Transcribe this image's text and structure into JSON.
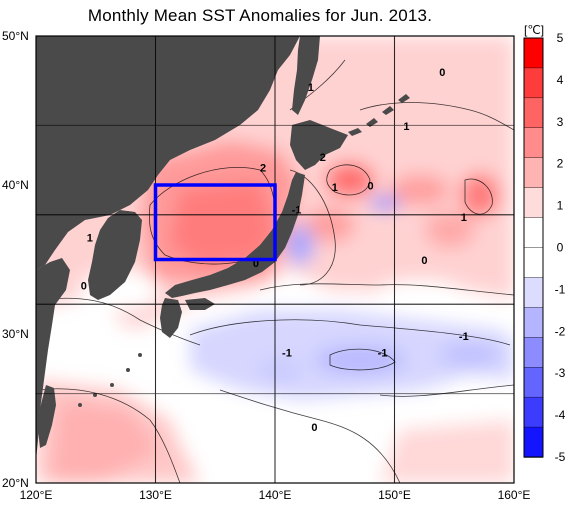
{
  "title": "Monthly Mean SST Anomalies for Jun. 2013.",
  "map": {
    "lat_range": [
      20,
      50
    ],
    "lon_range": [
      120,
      160
    ],
    "lat_ticks": [
      "50°N",
      "40°N",
      "30°N",
      "20°N"
    ],
    "lon_ticks": [
      "120°E",
      "130°E",
      "140°E",
      "150°E",
      "160°E"
    ],
    "grid": true,
    "land_color": "#4a4a4a",
    "ocean_color": "#ffffff"
  },
  "highlight_box": {
    "lon_range": [
      130,
      140
    ],
    "lat_range": [
      35,
      40
    ],
    "color": "#0000ff"
  },
  "contour_labels": [
    {
      "text": "1",
      "lon": 143.0,
      "lat": 46.3
    },
    {
      "text": "0",
      "lon": 154.0,
      "lat": 47.3
    },
    {
      "text": "1",
      "lon": 151.0,
      "lat": 43.7
    },
    {
      "text": "2",
      "lon": 144.0,
      "lat": 41.6
    },
    {
      "text": "2",
      "lon": 139.0,
      "lat": 40.9
    },
    {
      "text": "1",
      "lon": 145.0,
      "lat": 39.6
    },
    {
      "text": "0",
      "lon": 148.0,
      "lat": 39.7
    },
    {
      "text": "-1",
      "lon": 141.8,
      "lat": 38.1
    },
    {
      "text": "1",
      "lon": 155.8,
      "lat": 37.6
    },
    {
      "text": "1",
      "lon": 124.5,
      "lat": 36.2
    },
    {
      "text": "0",
      "lon": 138.4,
      "lat": 34.5
    },
    {
      "text": "0",
      "lon": 152.5,
      "lat": 34.7
    },
    {
      "text": "0",
      "lon": 124.0,
      "lat": 33.0
    },
    {
      "text": "-1",
      "lon": 155.8,
      "lat": 29.6
    },
    {
      "text": "-1",
      "lon": 141.0,
      "lat": 28.5
    },
    {
      "text": "-1",
      "lon": 149.0,
      "lat": 28.5
    },
    {
      "text": "0",
      "lon": 143.3,
      "lat": 23.5
    }
  ],
  "colorbar": {
    "unit": "[℃]",
    "min": -5,
    "max": 5,
    "labels": [
      "5",
      "4",
      "3",
      "2",
      "1",
      "0",
      "-1",
      "-2",
      "-3",
      "-4",
      "-5"
    ],
    "colors_top_to_bottom": [
      "#ff0000",
      "#ff3c3c",
      "#ff6464",
      "#ff8c8c",
      "#ffb4b4",
      "#ffdcdc",
      "#ffffff",
      "#ffffff",
      "#dcdcff",
      "#b4b4ff",
      "#8c8cff",
      "#6464ff",
      "#3c3cff",
      "#1414ff"
    ]
  }
}
